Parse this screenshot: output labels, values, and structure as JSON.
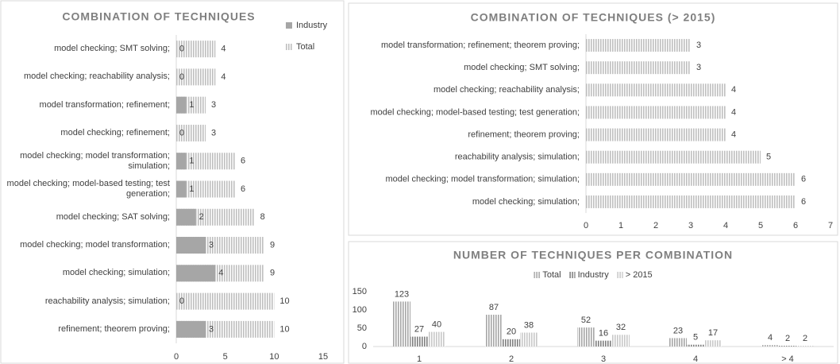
{
  "chart_data": [
    {
      "type": "bar",
      "orientation": "horizontal",
      "title": "COMBINATION OF TECHNIQUES",
      "categories": [
        "model checking; SMT solving;",
        "model checking; reachability analysis;",
        "model transformation; refinement;",
        "model checking; refinement;",
        "model checking; model transformation; simulation;",
        "model checking; model-based testing; test generation;",
        "model checking; SAT solving;",
        "model checking; model transformation;",
        "model checking; simulation;",
        "reachability analysis; simulation;",
        "refinement; theorem proving;"
      ],
      "series": [
        {
          "name": "Total",
          "color": "#bfbfbf",
          "fill": "striped",
          "values": [
            4,
            4,
            3,
            3,
            6,
            6,
            8,
            9,
            9,
            10,
            10
          ]
        },
        {
          "name": "Industry",
          "color": "#a6a6a6",
          "fill": "solid",
          "values": [
            0,
            0,
            1,
            0,
            1,
            1,
            2,
            3,
            4,
            0,
            3
          ]
        }
      ],
      "legend_order": [
        1,
        0
      ],
      "legend": "right",
      "xlim": [
        0,
        15
      ],
      "xticks": [
        0,
        5,
        10,
        15
      ]
    },
    {
      "type": "bar",
      "orientation": "horizontal",
      "title": "COMBINATION OF TECHNIQUES (> 2015)",
      "categories": [
        "model transformation; refinement; theorem proving;",
        "model checking; SMT solving;",
        "model checking; reachability analysis;",
        "model checking; model-based testing; test generation;",
        "refinement; theorem proving;",
        "reachability analysis; simulation;",
        "model checking; model transformation; simulation;",
        "model checking; simulation;"
      ],
      "series": [
        {
          "color": "#bfbfbf",
          "fill": "striped",
          "values": [
            3,
            3,
            4,
            4,
            4,
            5,
            6,
            6
          ]
        }
      ],
      "xlim": [
        0,
        7
      ],
      "xticks": [
        0,
        1,
        2,
        3,
        4,
        5,
        6,
        7
      ]
    },
    {
      "type": "bar",
      "orientation": "vertical",
      "title": "NUMBER OF TECHNIQUES PER COMBINATION",
      "categories": [
        "1",
        "2",
        "3",
        "4",
        "> 4"
      ],
      "series": [
        {
          "name": "Total",
          "color": "#a6a6a6",
          "fill": "striped",
          "values": [
            123,
            87,
            52,
            23,
            4
          ]
        },
        {
          "name": "Industry",
          "color": "#7f7f7f",
          "fill": "striped",
          "values": [
            27,
            20,
            16,
            5,
            2
          ]
        },
        {
          "name": "> 2015",
          "color": "#c8c8c8",
          "fill": "striped",
          "values": [
            40,
            38,
            32,
            17,
            2
          ]
        }
      ],
      "legend": "top",
      "ylim": [
        0,
        150
      ],
      "yticks": [
        0,
        50,
        100,
        150
      ]
    }
  ]
}
